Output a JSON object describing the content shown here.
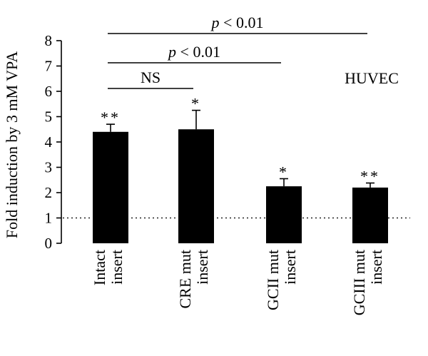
{
  "chart_data": {
    "type": "bar",
    "categories": [
      [
        "Intact",
        "insert"
      ],
      [
        "CRE mut",
        "insert"
      ],
      [
        "GCII mut",
        "insert"
      ],
      [
        "GCIII mut",
        "insert"
      ]
    ],
    "values": [
      4.4,
      4.5,
      2.25,
      2.2
    ],
    "errors": [
      0.3,
      0.75,
      0.3,
      0.18
    ],
    "significance": [
      "**",
      "*",
      "*",
      "**"
    ],
    "ylabel": "Fold induction by 3 mM VPA",
    "ylim": [
      0,
      8
    ],
    "yticks": [
      0,
      1,
      2,
      3,
      4,
      5,
      6,
      7,
      8
    ],
    "reference_line": 1,
    "cell_line_label": "HUVEC",
    "comparisons": [
      {
        "label": "NS",
        "from": 0,
        "to": 1
      },
      {
        "label_italic": "p",
        "label_rest": " < 0.01",
        "from": 0,
        "to": 2
      },
      {
        "label_italic": "p",
        "label_rest": " < 0.01",
        "from": 0,
        "to": 3
      }
    ],
    "bar_color": "#000000",
    "grid": false
  }
}
